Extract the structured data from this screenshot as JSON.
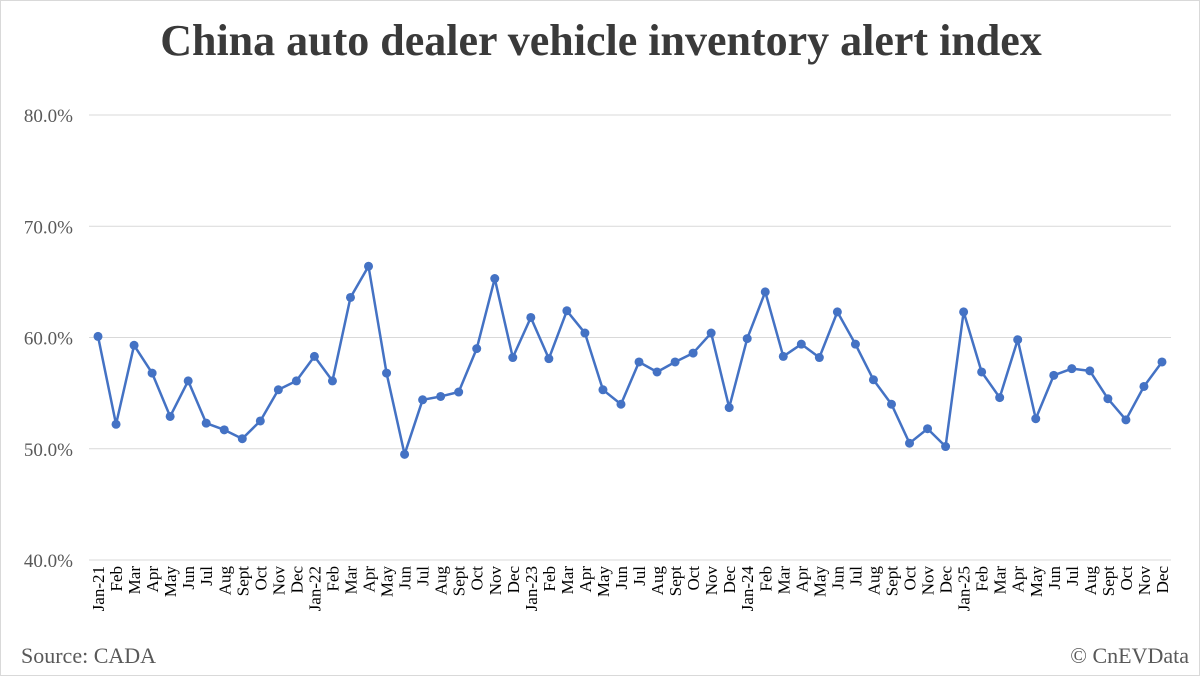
{
  "chart_data": {
    "type": "line",
    "title": "China auto dealer vehicle inventory alert index",
    "xlabel": "",
    "ylabel": "",
    "ylim": [
      40,
      80
    ],
    "yticks": [
      "40.0%",
      "50.0%",
      "60.0%",
      "70.0%",
      "80.0%"
    ],
    "grid": true,
    "legend": "none",
    "series_color": "#4472c4",
    "categories": [
      "Jan-21",
      "Feb",
      "Mar",
      "Apr",
      "May",
      "Jun",
      "Jul",
      "Aug",
      "Sept",
      "Oct",
      "Nov",
      "Dec",
      "Jan-22",
      "Feb",
      "Mar",
      "Apr",
      "May",
      "Jun",
      "Jul",
      "Aug",
      "Sept",
      "Oct",
      "Nov",
      "Dec",
      "Jan-23",
      "Feb",
      "Mar",
      "Apr",
      "May",
      "Jun",
      "Jul",
      "Aug",
      "Sept",
      "Oct",
      "Nov",
      "Dec",
      "Jan-24",
      "Feb",
      "Mar",
      "Apr",
      "May",
      "Jun",
      "Jul",
      "Aug",
      "Sept",
      "Oct",
      "Nov",
      "Dec",
      "Jan-25",
      "Feb",
      "Mar",
      "Apr",
      "May",
      "Jun",
      "Jul",
      "Aug",
      "Sept",
      "Oct",
      "Nov",
      "Dec"
    ],
    "series": [
      {
        "values": [
          60.1,
          52.2,
          59.3,
          56.8,
          52.9,
          56.1,
          52.3,
          51.7,
          50.9,
          52.5,
          55.3,
          56.1,
          58.3,
          56.1,
          63.6,
          66.4,
          56.8,
          49.5,
          54.4,
          54.7,
          55.1,
          59.0,
          65.3,
          58.2,
          61.8,
          58.1,
          62.4,
          60.4,
          55.3,
          54.0,
          57.8,
          56.9,
          57.8,
          58.6,
          60.4,
          53.7,
          59.9,
          64.1,
          58.3,
          59.4,
          58.2,
          62.3,
          59.4,
          56.2,
          54.0,
          50.5,
          51.8,
          50.2,
          62.3,
          56.9,
          54.6,
          59.8,
          52.7,
          56.6,
          57.2,
          57.0,
          54.5,
          52.6,
          55.6,
          57.8
        ]
      }
    ]
  },
  "footer": {
    "source": "Source: CADA",
    "credit": "© CnEVData"
  }
}
